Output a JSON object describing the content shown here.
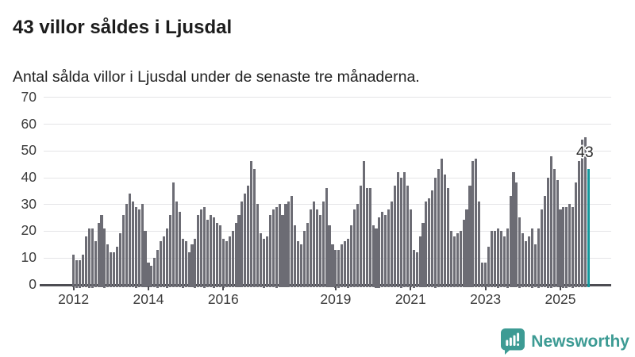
{
  "header": {
    "title": "43 villor såldes i Ljusdal",
    "subtitle": "Antal sålda villor i Ljusdal under de senaste tre månaderna."
  },
  "chart_data": {
    "type": "bar",
    "title": "43 villor såldes i Ljusdal",
    "subtitle": "Antal sålda villor i Ljusdal under de senaste tre månaderna.",
    "x_unit": "month",
    "x_start": "2012-01",
    "ylim": [
      0,
      70
    ],
    "yticks": [
      0,
      10,
      20,
      30,
      40,
      50,
      60,
      70
    ],
    "xticks": [
      {
        "label": "2012",
        "month_index": 0
      },
      {
        "label": "2014",
        "month_index": 24
      },
      {
        "label": "2016",
        "month_index": 48
      },
      {
        "label": "2019",
        "month_index": 84
      },
      {
        "label": "2021",
        "month_index": 108
      },
      {
        "label": "2023",
        "month_index": 132
      },
      {
        "label": "2025",
        "month_index": 156
      }
    ],
    "grid": true,
    "legend": "none",
    "values": [
      11,
      9,
      9,
      11,
      18,
      21,
      21,
      16,
      23,
      26,
      21,
      15,
      12,
      12,
      14,
      19,
      26,
      30,
      34,
      31,
      29,
      28,
      30,
      20,
      8,
      7,
      10,
      13,
      16,
      18,
      21,
      26,
      38,
      31,
      27,
      17,
      16,
      12,
      15,
      17,
      26,
      28,
      29,
      24,
      26,
      25,
      23,
      22,
      17,
      16,
      18,
      20,
      23,
      26,
      31,
      34,
      37,
      46,
      43,
      30,
      19,
      17,
      18,
      26,
      28,
      29,
      30,
      26,
      30,
      31,
      33,
      22,
      16,
      15,
      20,
      23,
      28,
      31,
      28,
      26,
      31,
      36,
      22,
      15,
      13,
      13,
      15,
      16,
      17,
      22,
      28,
      30,
      37,
      46,
      36,
      36,
      22,
      21,
      25,
      27,
      26,
      28,
      31,
      37,
      42,
      40,
      42,
      37,
      28,
      13,
      12,
      18,
      23,
      31,
      32,
      35,
      40,
      43,
      47,
      41,
      36,
      20,
      18,
      19,
      20,
      24,
      28,
      37,
      46,
      47,
      31,
      8,
      8,
      14,
      20,
      20,
      21,
      20,
      18,
      21,
      33,
      42,
      38,
      25,
      19,
      16,
      18,
      21,
      15,
      21,
      28,
      33,
      40,
      48,
      43,
      39,
      28,
      29,
      29,
      30,
      29,
      38,
      46,
      54,
      55,
      43
    ],
    "highlight_last": true,
    "last_value_label": "43",
    "colors": {
      "bar": "#6c6c74",
      "highlight": "#13999d",
      "gridline": "#e4e4e6",
      "axis": "#4c4c52",
      "axis_text": "#3b3b3b"
    }
  },
  "branding": {
    "name": "Newsworthy",
    "color": "#3d9b94"
  }
}
